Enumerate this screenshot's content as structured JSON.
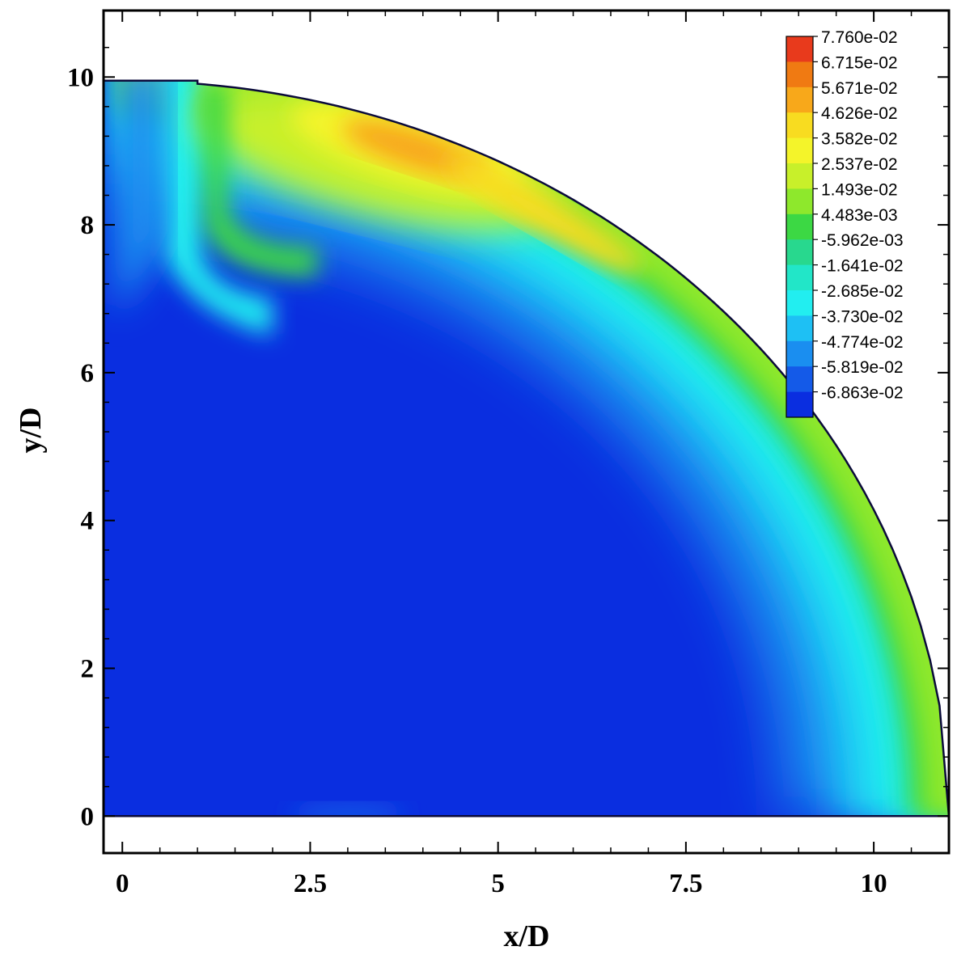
{
  "chart_data": {
    "type": "heatmap",
    "xlabel": "x/D",
    "ylabel": "y/D",
    "xlim": [
      -0.25,
      11
    ],
    "ylim": [
      -0.5,
      10.9
    ],
    "x_ticks": [
      {
        "value": 0,
        "label": "0"
      },
      {
        "value": 2.5,
        "label": "2.5"
      },
      {
        "value": 5,
        "label": "5"
      },
      {
        "value": 7.5,
        "label": "7.5"
      },
      {
        "value": 10,
        "label": "10"
      }
    ],
    "y_ticks": [
      {
        "value": 0,
        "label": "0"
      },
      {
        "value": 2,
        "label": "2"
      },
      {
        "value": 4,
        "label": "4"
      },
      {
        "value": 6,
        "label": "6"
      },
      {
        "value": 8,
        "label": "8"
      },
      {
        "value": 10,
        "label": "10"
      }
    ],
    "domain_shape": {
      "description": "quarter-ellipse region",
      "x_left": -0.25,
      "y_bottom": 0,
      "flat_top_y": 9.95,
      "flat_top_x_end": 1.0,
      "ellipse_center": [
        0,
        0
      ],
      "ellipse_semi_axes": [
        11.0,
        9.95
      ]
    },
    "colorbar": {
      "position": "top-right",
      "levels": [
        {
          "label": "7.760e-02",
          "color": "#e83a1c"
        },
        {
          "label": "6.715e-02",
          "color": "#f07a12"
        },
        {
          "label": "5.671e-02",
          "color": "#f8a81a"
        },
        {
          "label": "4.626e-02",
          "color": "#f8dc20"
        },
        {
          "label": "3.582e-02",
          "color": "#f4f42a"
        },
        {
          "label": "2.537e-02",
          "color": "#c8f02a"
        },
        {
          "label": "1.493e-02",
          "color": "#8ee82c"
        },
        {
          "label": "4.483e-03",
          "color": "#3cd844"
        },
        {
          "label": "-5.962e-03",
          "color": "#28d88e"
        },
        {
          "label": "-1.641e-02",
          "color": "#22e6c8"
        },
        {
          "label": "-2.685e-02",
          "color": "#22eef0"
        },
        {
          "label": "-3.730e-02",
          "color": "#1ec0f4"
        },
        {
          "label": "-4.774e-02",
          "color": "#1a8ef0"
        },
        {
          "label": "-5.819e-02",
          "color": "#145ae8"
        },
        {
          "label": "-6.863e-02",
          "color": "#0a2ee0"
        }
      ]
    },
    "field_features": [
      {
        "region": "interior",
        "value": "-6.863e-02"
      },
      {
        "region": "near curved boundary, band",
        "value": "2.537e-02"
      },
      {
        "region": "peak near top, x 3.5-4.5, y 8.6-9.2",
        "value": "5.671e-02"
      },
      {
        "region": "left strip x 0.5-1.2",
        "value": "-2.685e-02"
      }
    ]
  }
}
